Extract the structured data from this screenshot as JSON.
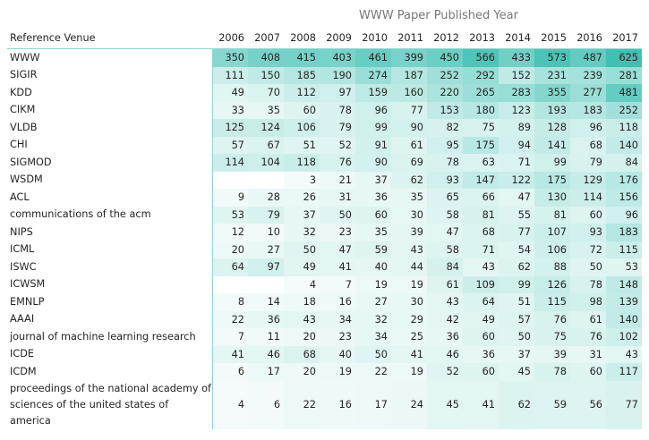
{
  "matrix": {
    "column_group_title": "WWW Paper Published Year",
    "row_header": "Reference Venue",
    "years": [
      "2006",
      "2007",
      "2008",
      "2009",
      "2010",
      "2011",
      "2012",
      "2013",
      "2014",
      "2015",
      "2016",
      "2017"
    ],
    "heat_color": "#1fb6a6",
    "rows": [
      {
        "venue": "WWW",
        "values": [
          350,
          408,
          415,
          403,
          461,
          399,
          450,
          566,
          433,
          573,
          487,
          625
        ]
      },
      {
        "venue": "SIGIR",
        "values": [
          111,
          150,
          185,
          190,
          274,
          187,
          252,
          292,
          152,
          231,
          239,
          281
        ]
      },
      {
        "venue": "KDD",
        "values": [
          49,
          70,
          112,
          97,
          159,
          160,
          220,
          265,
          283,
          355,
          277,
          481
        ]
      },
      {
        "venue": "CIKM",
        "values": [
          33,
          35,
          60,
          78,
          96,
          77,
          153,
          180,
          123,
          193,
          183,
          252
        ]
      },
      {
        "venue": "VLDB",
        "values": [
          125,
          124,
          106,
          79,
          99,
          90,
          82,
          75,
          89,
          128,
          96,
          118
        ]
      },
      {
        "venue": "CHI",
        "values": [
          57,
          67,
          51,
          52,
          91,
          61,
          95,
          175,
          94,
          141,
          68,
          140
        ]
      },
      {
        "venue": "SIGMOD",
        "values": [
          114,
          104,
          118,
          76,
          90,
          69,
          78,
          63,
          71,
          99,
          79,
          84
        ]
      },
      {
        "venue": "WSDM",
        "values": [
          null,
          null,
          3,
          21,
          37,
          62,
          93,
          147,
          122,
          175,
          129,
          176
        ]
      },
      {
        "venue": "ACL",
        "values": [
          9,
          28,
          26,
          31,
          36,
          35,
          65,
          66,
          47,
          130,
          114,
          156
        ]
      },
      {
        "venue": "communications of the acm",
        "values": [
          53,
          79,
          37,
          50,
          60,
          30,
          58,
          81,
          55,
          81,
          60,
          96
        ]
      },
      {
        "venue": "NIPS",
        "values": [
          12,
          10,
          32,
          23,
          35,
          39,
          47,
          68,
          77,
          107,
          93,
          183
        ]
      },
      {
        "venue": "ICML",
        "values": [
          20,
          27,
          50,
          47,
          59,
          43,
          58,
          71,
          54,
          106,
          72,
          115
        ]
      },
      {
        "venue": "ISWC",
        "values": [
          64,
          97,
          49,
          41,
          40,
          44,
          84,
          43,
          62,
          88,
          50,
          53
        ]
      },
      {
        "venue": "ICWSM",
        "values": [
          null,
          null,
          4,
          7,
          19,
          19,
          61,
          109,
          99,
          126,
          78,
          148
        ]
      },
      {
        "venue": "EMNLP",
        "values": [
          8,
          14,
          18,
          16,
          27,
          30,
          43,
          64,
          51,
          115,
          98,
          139
        ]
      },
      {
        "venue": "AAAI",
        "values": [
          22,
          36,
          43,
          34,
          32,
          29,
          42,
          49,
          57,
          76,
          61,
          140
        ]
      },
      {
        "venue": "journal of machine learning research",
        "values": [
          7,
          11,
          20,
          23,
          34,
          25,
          36,
          60,
          50,
          75,
          76,
          102
        ]
      },
      {
        "venue": "ICDE",
        "values": [
          41,
          46,
          68,
          40,
          50,
          41,
          46,
          36,
          37,
          39,
          31,
          43
        ]
      },
      {
        "venue": "ICDM",
        "values": [
          6,
          17,
          20,
          19,
          22,
          19,
          52,
          60,
          45,
          78,
          60,
          117
        ]
      },
      {
        "venue": "proceedings of the national academy of sciences of the united states of america",
        "values": [
          4,
          6,
          22,
          16,
          17,
          24,
          45,
          41,
          62,
          59,
          56,
          77
        ]
      }
    ]
  }
}
